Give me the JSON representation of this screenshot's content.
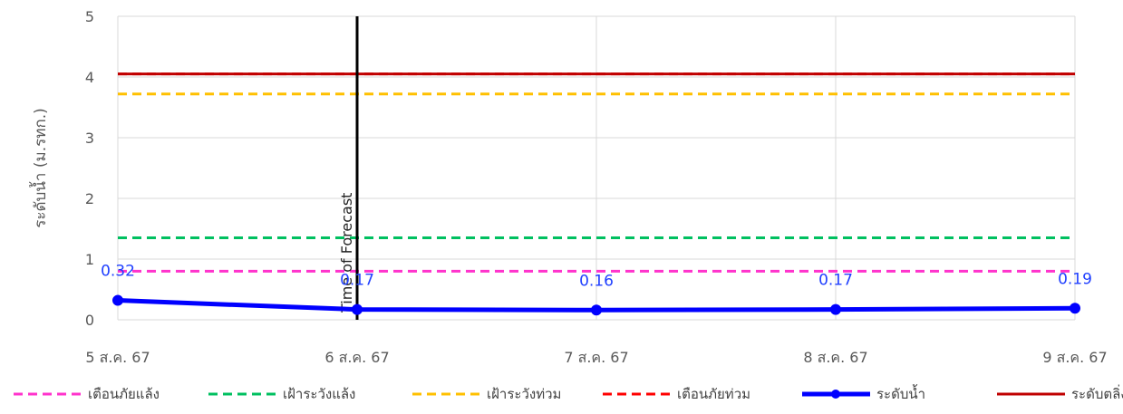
{
  "chart_data": {
    "type": "line",
    "ylabel": "ระดับน้ำ (ม.รทก.)",
    "ylim": [
      0,
      5
    ],
    "yticks": [
      "0",
      "1",
      "2",
      "3",
      "4",
      "5"
    ],
    "categories": [
      "5 ส.ค. 67",
      "6 ส.ค. 67",
      "7 ส.ค. 67",
      "8 ส.ค. 67",
      "9 ส.ค. 67"
    ],
    "grid": true,
    "forecast_line": {
      "label": "Time of Forecast",
      "x": "6 ส.ค. 67"
    },
    "thresholds": [
      {
        "name": "เตือนภัยแล้ง",
        "value": 0.8,
        "color": "#ff33cc",
        "style": "dashed"
      },
      {
        "name": "เฝ้าระวังแล้ง",
        "value": 1.35,
        "color": "#00c060",
        "style": "dashed"
      },
      {
        "name": "เฝ้าระวังท่วม",
        "value": 3.72,
        "color": "#ffc000",
        "style": "dashed"
      },
      {
        "name": "เตือนภัยท่วม",
        "value": 4.05,
        "color": "#ff0000",
        "style": "dashed"
      },
      {
        "name": "ระดับตลิ่ง",
        "value": 4.05,
        "color": "#c00000",
        "style": "solid"
      }
    ],
    "series": [
      {
        "name": "ระดับน้ำ",
        "color": "#0000ff",
        "values": [
          0.32,
          0.17,
          0.16,
          0.17,
          0.19
        ],
        "labels": [
          "0.32",
          "0.17",
          "0.16",
          "0.17",
          "0.19"
        ]
      }
    ],
    "legend_position": "bottom",
    "legend": [
      "เตือนภัยแล้ง",
      "เฝ้าระวังแล้ง",
      "เฝ้าระวังท่วม",
      "เตือนภัยท่วม",
      "ระดับน้ำ",
      "ระดับตลิ่ง"
    ]
  }
}
